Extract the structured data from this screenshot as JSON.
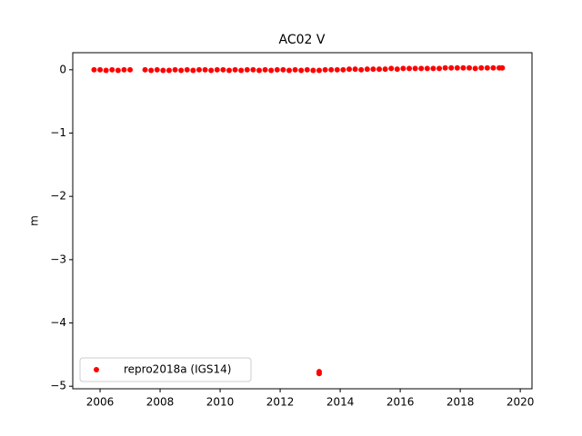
{
  "chart_data": {
    "type": "scatter",
    "title": "AC02 V",
    "y_label": "m",
    "xlim": [
      2005.09,
      2020.39
    ],
    "ylim": [
      -5.04,
      0.27
    ],
    "xticks": [
      2006,
      2008,
      2010,
      2012,
      2014,
      2016,
      2018,
      2020
    ],
    "yticks": [
      {
        "value": 0,
        "label": "0"
      },
      {
        "value": -1,
        "label": "−1"
      },
      {
        "value": -2,
        "label": "−2"
      },
      {
        "value": -3,
        "label": "−3"
      },
      {
        "value": -4,
        "label": "−4"
      },
      {
        "value": -5,
        "label": "−5"
      }
    ],
    "grid": false,
    "legend": "lower left",
    "series": [
      {
        "name": "repro2018a (IGS14)",
        "color": "#ff0000",
        "x": [
          2005.8,
          2006.0,
          2006.2,
          2006.4,
          2006.6,
          2006.8,
          2007.0,
          2007.5,
          2007.7,
          2007.9,
          2008.1,
          2008.3,
          2008.5,
          2008.7,
          2008.9,
          2009.1,
          2009.3,
          2009.5,
          2009.7,
          2009.9,
          2010.1,
          2010.3,
          2010.5,
          2010.7,
          2010.9,
          2011.1,
          2011.3,
          2011.5,
          2011.7,
          2011.9,
          2012.1,
          2012.3,
          2012.5,
          2012.7,
          2012.9,
          2013.1,
          2013.3,
          2013.5,
          2013.7,
          2013.9,
          2014.1,
          2014.3,
          2014.5,
          2014.7,
          2014.9,
          2015.1,
          2015.3,
          2015.5,
          2015.7,
          2015.9,
          2016.1,
          2016.3,
          2016.5,
          2016.7,
          2016.9,
          2017.1,
          2017.3,
          2017.5,
          2017.7,
          2017.9,
          2018.1,
          2018.3,
          2018.5,
          2018.7,
          2018.9,
          2019.1,
          2019.3,
          2019.4,
          2013.3,
          2013.3
        ],
        "values": [
          0,
          0,
          -0.01,
          0,
          -0.01,
          0,
          0,
          0,
          -0.01,
          0,
          -0.01,
          -0.01,
          0,
          -0.01,
          0,
          -0.01,
          0,
          0,
          -0.01,
          0,
          0,
          -0.01,
          0,
          -0.01,
          0,
          0,
          -0.01,
          0,
          -0.01,
          0,
          0,
          -0.01,
          0,
          -0.01,
          0,
          -0.01,
          -0.01,
          0,
          0,
          0,
          0,
          0.01,
          0.01,
          0,
          0.01,
          0.01,
          0.01,
          0.01,
          0.02,
          0.01,
          0.02,
          0.02,
          0.02,
          0.02,
          0.02,
          0.02,
          0.02,
          0.03,
          0.03,
          0.03,
          0.03,
          0.03,
          0.02,
          0.03,
          0.03,
          0.03,
          0.03,
          0.03,
          -4.77,
          -4.8
        ]
      }
    ]
  }
}
